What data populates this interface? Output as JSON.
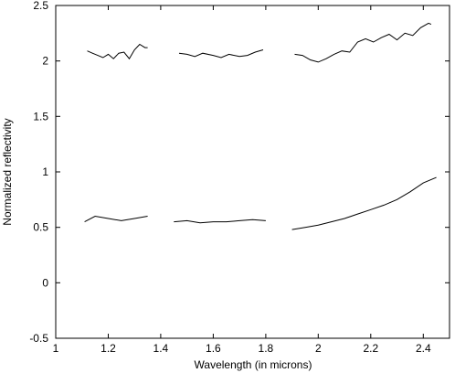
{
  "chart_data": {
    "type": "line",
    "title": "",
    "xlabel": "Wavelength (in microns)",
    "ylabel": "Normalized reflectivity",
    "xlim": [
      1.0,
      2.5
    ],
    "ylim": [
      -0.5,
      2.5
    ],
    "x_ticks": [
      1,
      1.2,
      1.4,
      1.6,
      1.8,
      2,
      2.2,
      2.4
    ],
    "x_tick_labels": [
      "1",
      "1.2",
      "1.4",
      "1.6",
      "1.8",
      "2",
      "2.2",
      "2.4"
    ],
    "y_ticks": [
      -0.5,
      0,
      0.5,
      1,
      1.5,
      2,
      2.5
    ],
    "y_tick_labels": [
      "-0.5",
      "0",
      "0.5",
      "1",
      "1.5",
      "2",
      "2.5"
    ],
    "grid": false,
    "legend": "none",
    "color": "#000000",
    "series": [
      {
        "x": [
          1.12,
          1.14,
          1.16,
          1.18,
          1.2,
          1.22,
          1.24,
          1.26,
          1.28,
          1.3,
          1.32,
          1.34,
          1.35
        ],
        "values": [
          2.09,
          2.07,
          2.05,
          2.03,
          2.06,
          2.02,
          2.07,
          2.08,
          2.02,
          2.1,
          2.15,
          2.12,
          2.12
        ]
      },
      {
        "x": [
          1.47,
          1.5,
          1.53,
          1.56,
          1.6,
          1.63,
          1.66,
          1.7,
          1.73,
          1.76,
          1.79
        ],
        "values": [
          2.07,
          2.06,
          2.04,
          2.07,
          2.05,
          2.03,
          2.06,
          2.04,
          2.05,
          2.08,
          2.1
        ]
      },
      {
        "x": [
          1.91,
          1.94,
          1.97,
          2.0,
          2.03,
          2.06,
          2.09,
          2.12,
          2.15,
          2.18,
          2.21,
          2.24,
          2.27,
          2.3,
          2.33,
          2.36,
          2.39,
          2.42,
          2.43
        ],
        "values": [
          2.06,
          2.05,
          2.01,
          1.99,
          2.02,
          2.06,
          2.09,
          2.08,
          2.17,
          2.2,
          2.17,
          2.21,
          2.24,
          2.19,
          2.25,
          2.23,
          2.3,
          2.34,
          2.33
        ]
      },
      {
        "x": [
          1.11,
          1.15,
          1.2,
          1.25,
          1.3,
          1.35
        ],
        "values": [
          0.55,
          0.6,
          0.58,
          0.56,
          0.58,
          0.6
        ]
      },
      {
        "x": [
          1.45,
          1.5,
          1.55,
          1.6,
          1.65,
          1.7,
          1.75,
          1.8
        ],
        "values": [
          0.55,
          0.56,
          0.54,
          0.55,
          0.55,
          0.56,
          0.57,
          0.56
        ]
      },
      {
        "x": [
          1.9,
          1.95,
          2.0,
          2.05,
          2.1,
          2.15,
          2.2,
          2.25,
          2.3,
          2.35,
          2.4,
          2.45
        ],
        "values": [
          0.48,
          0.5,
          0.52,
          0.55,
          0.58,
          0.62,
          0.66,
          0.7,
          0.75,
          0.82,
          0.9,
          0.95
        ]
      }
    ]
  }
}
